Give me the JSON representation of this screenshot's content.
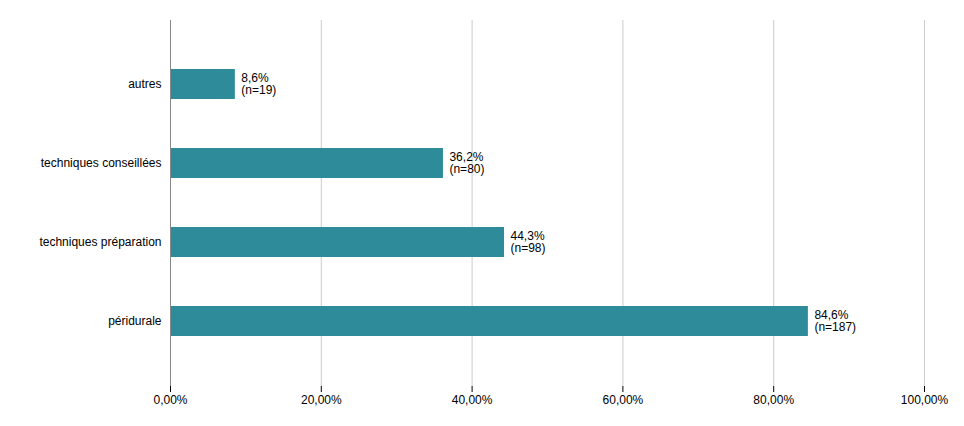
{
  "chart_data": {
    "type": "bar",
    "orientation": "horizontal",
    "categories": [
      "péridurale",
      "techniques préparation",
      "techniques conseillées",
      "autres"
    ],
    "values": [
      84.6,
      44.3,
      36.2,
      8.6
    ],
    "value_labels": [
      "84,6%",
      "44,3%",
      "36,2%",
      "8,6%"
    ],
    "annotations": [
      "(n=187)",
      "(n=98)",
      "(n=80)",
      "(n=19)"
    ],
    "color": "#2e8b9a",
    "xlim": [
      0,
      100
    ],
    "xticks": [
      {
        "value": 0,
        "label": "0,00%"
      },
      {
        "value": 20,
        "label": "20,00%"
      },
      {
        "value": 40,
        "label": "40,00%"
      },
      {
        "value": 60,
        "label": "60,00%"
      },
      {
        "value": 80,
        "label": "80,00%"
      },
      {
        "value": 100,
        "label": "100,00%"
      }
    ],
    "grid": true,
    "data_labels": true
  }
}
